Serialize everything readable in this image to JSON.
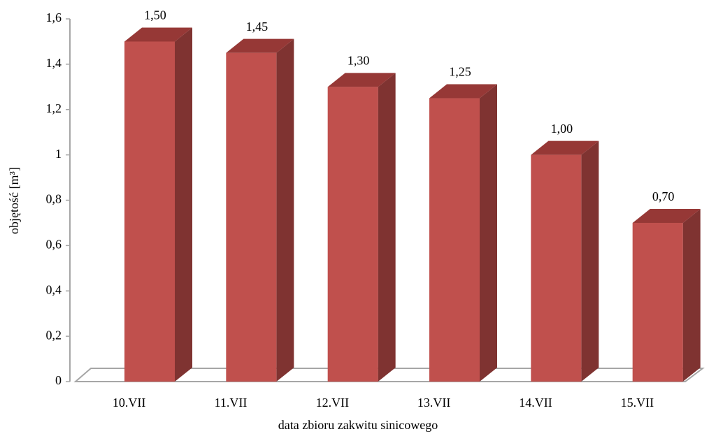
{
  "chart_data": {
    "type": "bar",
    "categories": [
      "10.VII",
      "11.VII",
      "12.VII",
      "13.VII",
      "14.VII",
      "15.VII"
    ],
    "values": [
      1.5,
      1.45,
      1.3,
      1.25,
      1.0,
      0.7
    ],
    "value_labels": [
      "1,50",
      "1,45",
      "1,30",
      "1,25",
      "1,00",
      "0,70"
    ],
    "color": "#c0504d",
    "side_color": "#7f3331",
    "top_color": "#963836",
    "ylim": [
      0,
      1.6
    ],
    "yticks": [
      0,
      {
        "value": 0.2,
        "label": "0,2"
      },
      {
        "value": 0.4,
        "label": "0,4"
      },
      {
        "value": 0.6,
        "label": "0,6"
      },
      {
        "value": 0.8,
        "label": "0,8"
      },
      1,
      {
        "value": 1.2,
        "label": "1,2"
      },
      {
        "value": 1.4,
        "label": "1,4"
      },
      {
        "value": 1.6,
        "label": "1,6"
      }
    ],
    "xlabel": "data zbioru zakwitu sinicowego",
    "ylabel": "objętość [m³]"
  }
}
